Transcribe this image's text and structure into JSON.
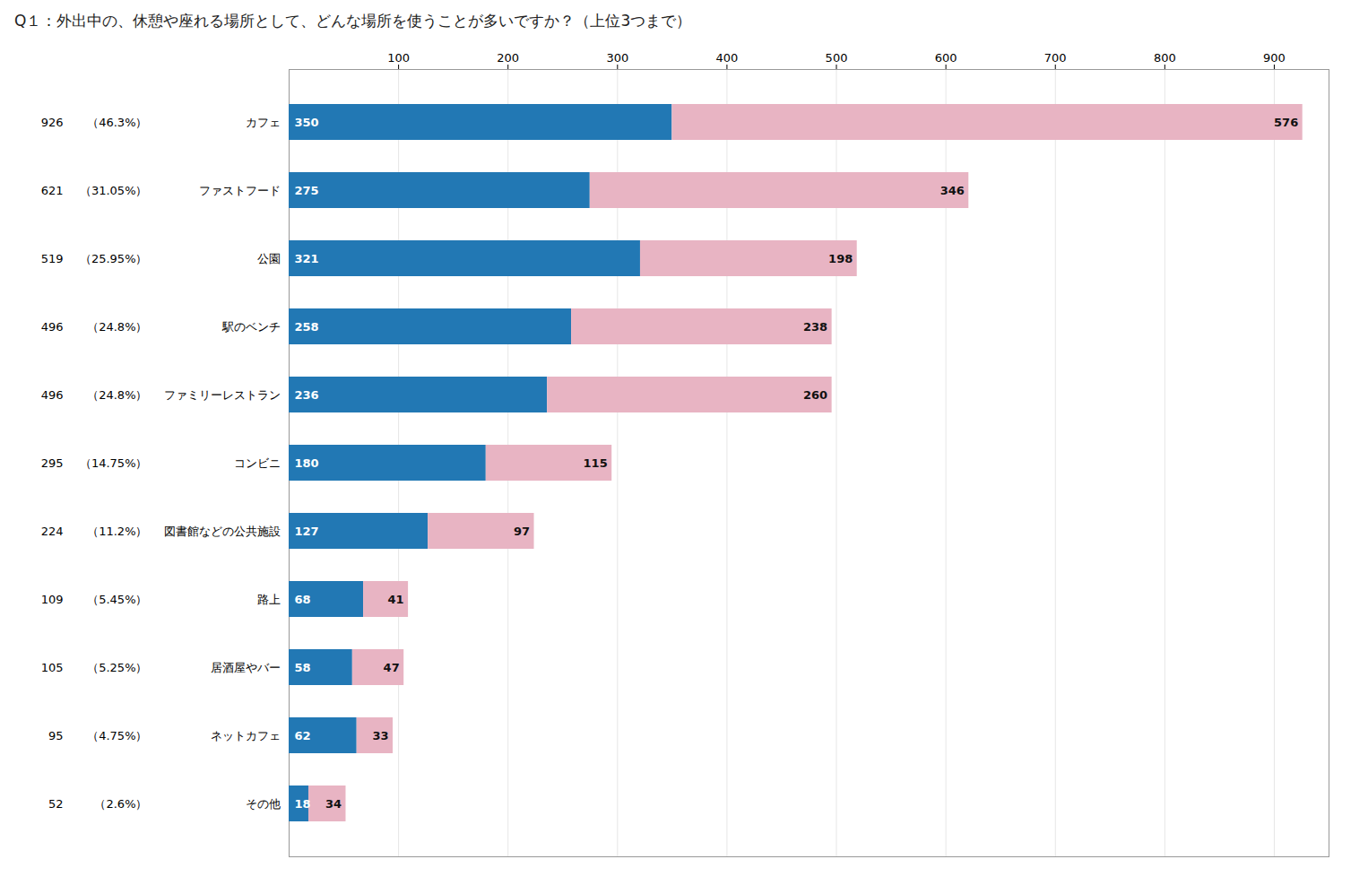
{
  "chart_data": {
    "type": "bar",
    "orientation": "horizontal",
    "stacked": true,
    "title": "Q１：外出中の、休憩や座れる場所として、どんな場所を使うことが多いですか？（上位3つまで）",
    "categories": [
      "カフェ",
      "ファストフード",
      "公園",
      "駅のベンチ",
      "ファミリーレストラン",
      "コンビニ",
      "図書館などの公共施設",
      "路上",
      "居酒屋やバー",
      "ネットカフェ",
      "その他"
    ],
    "series": [
      {
        "color": "#2278b4",
        "values": [
          350,
          275,
          321,
          258,
          236,
          180,
          127,
          68,
          58,
          62,
          18
        ]
      },
      {
        "color": "#e8b4c3",
        "values": [
          576,
          346,
          198,
          238,
          260,
          115,
          97,
          41,
          47,
          33,
          34
        ]
      }
    ],
    "totals": [
      926,
      621,
      519,
      496,
      496,
      295,
      224,
      109,
      105,
      95,
      52
    ],
    "shares": [
      46.3,
      31.05,
      25.95,
      24.8,
      24.8,
      14.75,
      11.2,
      5.45,
      5.25,
      4.75,
      2.6
    ],
    "share_labels": [
      "（46.3%）",
      "（31.05%）",
      "（25.95%）",
      "（24.8%）",
      "（24.8%）",
      "（14.75%）",
      "（11.2%）",
      "（5.45%）",
      "（5.25%）",
      "（4.75%）",
      "（2.6%）"
    ],
    "xlim": [
      0,
      950
    ],
    "xticks": [
      100,
      200,
      300,
      400,
      500,
      600,
      700,
      800,
      900
    ],
    "grid": true,
    "data_labels": true
  }
}
